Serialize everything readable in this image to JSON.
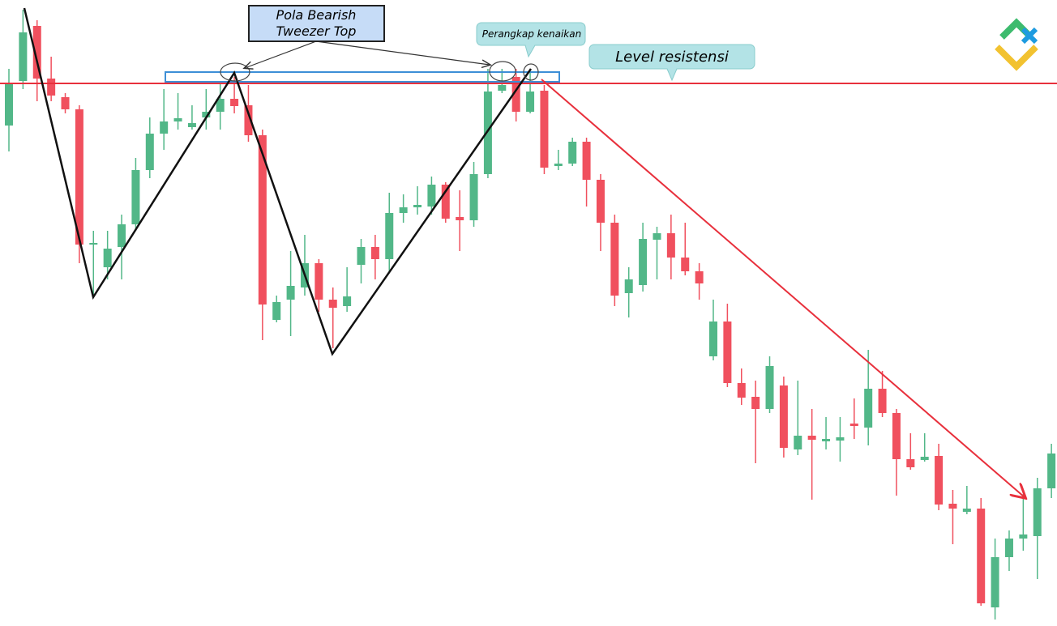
{
  "chart_data": {
    "type": "candlestick",
    "pattern_label": [
      "Pola Bearish",
      "Tweezer Top"
    ],
    "trap_label": "Perangkap kenaikan",
    "resistance_label": "Level resistensi",
    "up_color": "#52b788",
    "down_color": "#f0505e",
    "open": [
      614,
      669,
      737,
      672,
      649,
      634,
      467,
      439,
      464,
      492,
      559,
      604,
      619,
      612,
      624,
      631,
      647,
      639,
      602,
      374,
      399,
      414,
      444,
      399,
      391,
      442,
      464,
      449,
      506,
      513,
      514,
      541,
      501,
      497,
      554,
      657,
      674,
      631,
      657,
      564,
      567,
      594,
      547,
      494,
      407,
      417,
      473,
      481,
      451,
      434,
      329,
      372,
      296,
      279,
      264,
      293,
      214,
      231,
      224,
      225,
      246,
      241,
      289,
      259,
      202,
      201,
      206,
      147,
      137,
      141,
      19,
      81,
      104,
      107,
      166
    ],
    "high": [
      684,
      757,
      744,
      699,
      654,
      639,
      484,
      484,
      504,
      574,
      624,
      659,
      654,
      639,
      659,
      669,
      674,
      664,
      609,
      404,
      459,
      479,
      449,
      414,
      439,
      474,
      479,
      531,
      529,
      539,
      551,
      544,
      534,
      569,
      684,
      684,
      684,
      679,
      664,
      584,
      599,
      599,
      554,
      504,
      439,
      494,
      489,
      504,
      494,
      444,
      399,
      394,
      314,
      299,
      329,
      304,
      299,
      264,
      254,
      254,
      277,
      337,
      311,
      264,
      234,
      234,
      221,
      164,
      169,
      154,
      104,
      114,
      159,
      179,
      221
    ],
    "low": [
      582,
      659,
      644,
      644,
      629,
      444,
      404,
      424,
      424,
      484,
      549,
      584,
      609,
      609,
      609,
      609,
      629,
      594,
      349,
      371,
      354,
      404,
      384,
      339,
      384,
      419,
      424,
      434,
      494,
      504,
      504,
      494,
      459,
      489,
      549,
      654,
      619,
      629,
      554,
      559,
      564,
      514,
      459,
      391,
      377,
      409,
      424,
      424,
      429,
      399,
      324,
      291,
      269,
      197,
      259,
      204,
      207,
      152,
      214,
      199,
      227,
      219,
      254,
      157,
      189,
      199,
      139,
      97,
      134,
      21,
      4,
      64,
      89,
      54,
      154
    ],
    "close": [
      666,
      729,
      672,
      651,
      634,
      467,
      469,
      462,
      492,
      559,
      604,
      619,
      623,
      617,
      631,
      647,
      638,
      602,
      393,
      396,
      416,
      444,
      399,
      389,
      403,
      464,
      449,
      506,
      513,
      516,
      541,
      499,
      497,
      554,
      656,
      664,
      631,
      656,
      562,
      567,
      594,
      547,
      494,
      404,
      424,
      474,
      481,
      451,
      434,
      419,
      372,
      296,
      278,
      264,
      317,
      216,
      231,
      226,
      227,
      229,
      243,
      289,
      259,
      202,
      192,
      205,
      146,
      141,
      141,
      24,
      81,
      104,
      109,
      166,
      209
    ]
  }
}
